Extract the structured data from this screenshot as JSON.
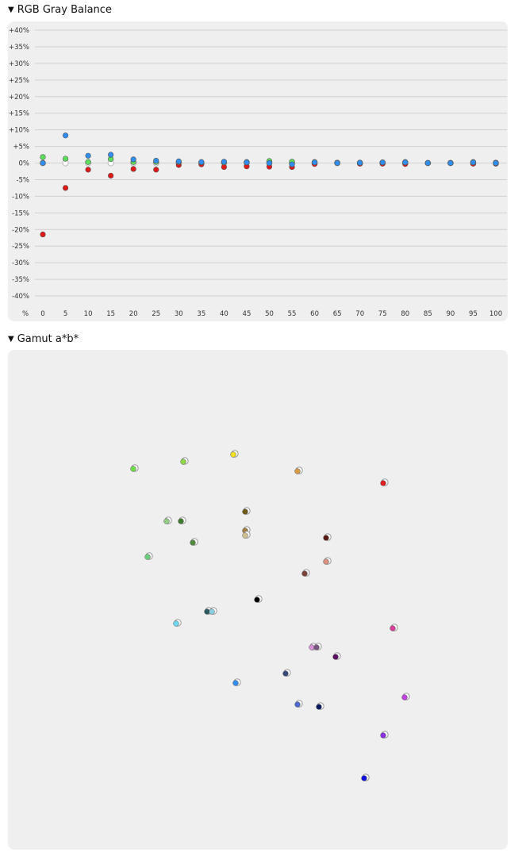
{
  "sections": {
    "gray": {
      "title": "RGB Gray Balance",
      "toggle": "▼"
    },
    "gamut": {
      "title": "Gamut a*b*",
      "toggle": "▼"
    }
  },
  "colors": {
    "red": "#e01818",
    "green": "#5be05b",
    "blue": "#2f8ef0",
    "reference": "#ffffff",
    "grid": "#d0d0d0",
    "panel": "#efefef"
  },
  "chart_data": [
    {
      "type": "scatter",
      "title": "RGB Gray Balance",
      "x_corner_label": "%",
      "x": [
        0,
        5,
        10,
        15,
        20,
        25,
        30,
        35,
        40,
        45,
        50,
        55,
        60,
        65,
        70,
        75,
        80,
        85,
        90,
        95,
        100
      ],
      "x_tick_labels": [
        "0",
        "5",
        "10",
        "15",
        "20",
        "25",
        "30",
        "35",
        "40",
        "45",
        "50",
        "55",
        "60",
        "65",
        "70",
        "75",
        "80",
        "85",
        "90",
        "95",
        "100"
      ],
      "y_tick_labels": [
        "+40%",
        "+35%",
        "+30%",
        "+25%",
        "+20%",
        "+15%",
        "+10%",
        "+5%",
        "0%",
        "-5%",
        "-10%",
        "-15%",
        "-20%",
        "-25%",
        "-30%",
        "-35%",
        "-40%"
      ],
      "ylim": [
        -40,
        40
      ],
      "grid": true,
      "series": [
        {
          "color": "#e01818",
          "values": [
            -21.5,
            -7.5,
            -2,
            -3.8,
            -1.8,
            -2,
            -0.6,
            -0.4,
            -1.2,
            -1,
            -1.1,
            -1.2,
            -0.3,
            0,
            -0.2,
            -0.2,
            -0.3,
            0,
            0,
            -0.2,
            -0.2
          ]
        },
        {
          "color": "#5be05b",
          "values": [
            1.8,
            1.3,
            0.3,
            1.2,
            0.3,
            0.3,
            0.3,
            0.2,
            0.2,
            0.3,
            0.6,
            0.4,
            0.3,
            0.1,
            0.1,
            0.2,
            0.3,
            0,
            0,
            0.3,
            0.1
          ]
        },
        {
          "color": "#2f8ef0",
          "values": [
            0,
            8.3,
            2.2,
            2.5,
            1.1,
            0.7,
            0.5,
            0.3,
            0.4,
            0.2,
            0,
            -0.4,
            0.2,
            0,
            0.1,
            0.2,
            0.2,
            0,
            0,
            0.2,
            0
          ]
        },
        {
          "color": "#ffffff",
          "reference": true,
          "values": [
            0,
            0,
            0,
            0,
            0,
            0,
            0,
            0,
            0,
            0,
            0,
            0,
            0,
            0,
            0,
            0,
            0,
            0,
            0,
            0,
            0
          ]
        }
      ]
    },
    {
      "type": "scatter",
      "title": "Gamut a*b*",
      "xlim": [
        -100,
        100
      ],
      "ylim": [
        -100,
        100
      ],
      "grid": false,
      "points": [
        {
          "a": -52,
          "b": 55,
          "color": "#6fdd4a"
        },
        {
          "a": -31,
          "b": 58,
          "color": "#8cd845"
        },
        {
          "a": -10,
          "b": 61,
          "color": "#f0e020"
        },
        {
          "a": 17,
          "b": 54,
          "color": "#d89a45"
        },
        {
          "a": 53,
          "b": 49,
          "color": "#e02020"
        },
        {
          "a": -5,
          "b": 37,
          "color": "#6e5a18"
        },
        {
          "a": -38,
          "b": 33,
          "color": "#8fce80"
        },
        {
          "a": -32,
          "b": 33,
          "color": "#3e7a30"
        },
        {
          "a": -5,
          "b": 29,
          "color": "#a07a40"
        },
        {
          "a": -5,
          "b": 27,
          "color": "#cfc090"
        },
        {
          "a": 29,
          "b": 26,
          "color": "#5a1a14"
        },
        {
          "a": -27,
          "b": 24,
          "color": "#4e8a40"
        },
        {
          "a": -46,
          "b": 18,
          "color": "#6ad07a"
        },
        {
          "a": 29,
          "b": 16,
          "color": "#d89080"
        },
        {
          "a": 20,
          "b": 11,
          "color": "#7a4538"
        },
        {
          "a": 0,
          "b": 0,
          "color": "#000000"
        },
        {
          "a": -21,
          "b": -5,
          "color": "#2a5a60"
        },
        {
          "a": -19,
          "b": -5,
          "color": "#8ad0e0"
        },
        {
          "a": -34,
          "b": -10,
          "color": "#6ad8f0"
        },
        {
          "a": 57,
          "b": -12,
          "color": "#d8409a"
        },
        {
          "a": 23,
          "b": -20,
          "color": "#d890d8"
        },
        {
          "a": 25,
          "b": -20,
          "color": "#7a5580"
        },
        {
          "a": 33,
          "b": -24,
          "color": "#5a1060"
        },
        {
          "a": 12,
          "b": -31,
          "color": "#3a4a80"
        },
        {
          "a": -9,
          "b": -35,
          "color": "#2f8ef0"
        },
        {
          "a": 62,
          "b": -41,
          "color": "#c040e0"
        },
        {
          "a": 17,
          "b": -44,
          "color": "#4a6ad0"
        },
        {
          "a": 26,
          "b": -45,
          "color": "#0a1a60"
        },
        {
          "a": 53,
          "b": -57,
          "color": "#8a30e0"
        },
        {
          "a": 45,
          "b": -75,
          "color": "#1010e0"
        }
      ]
    }
  ]
}
